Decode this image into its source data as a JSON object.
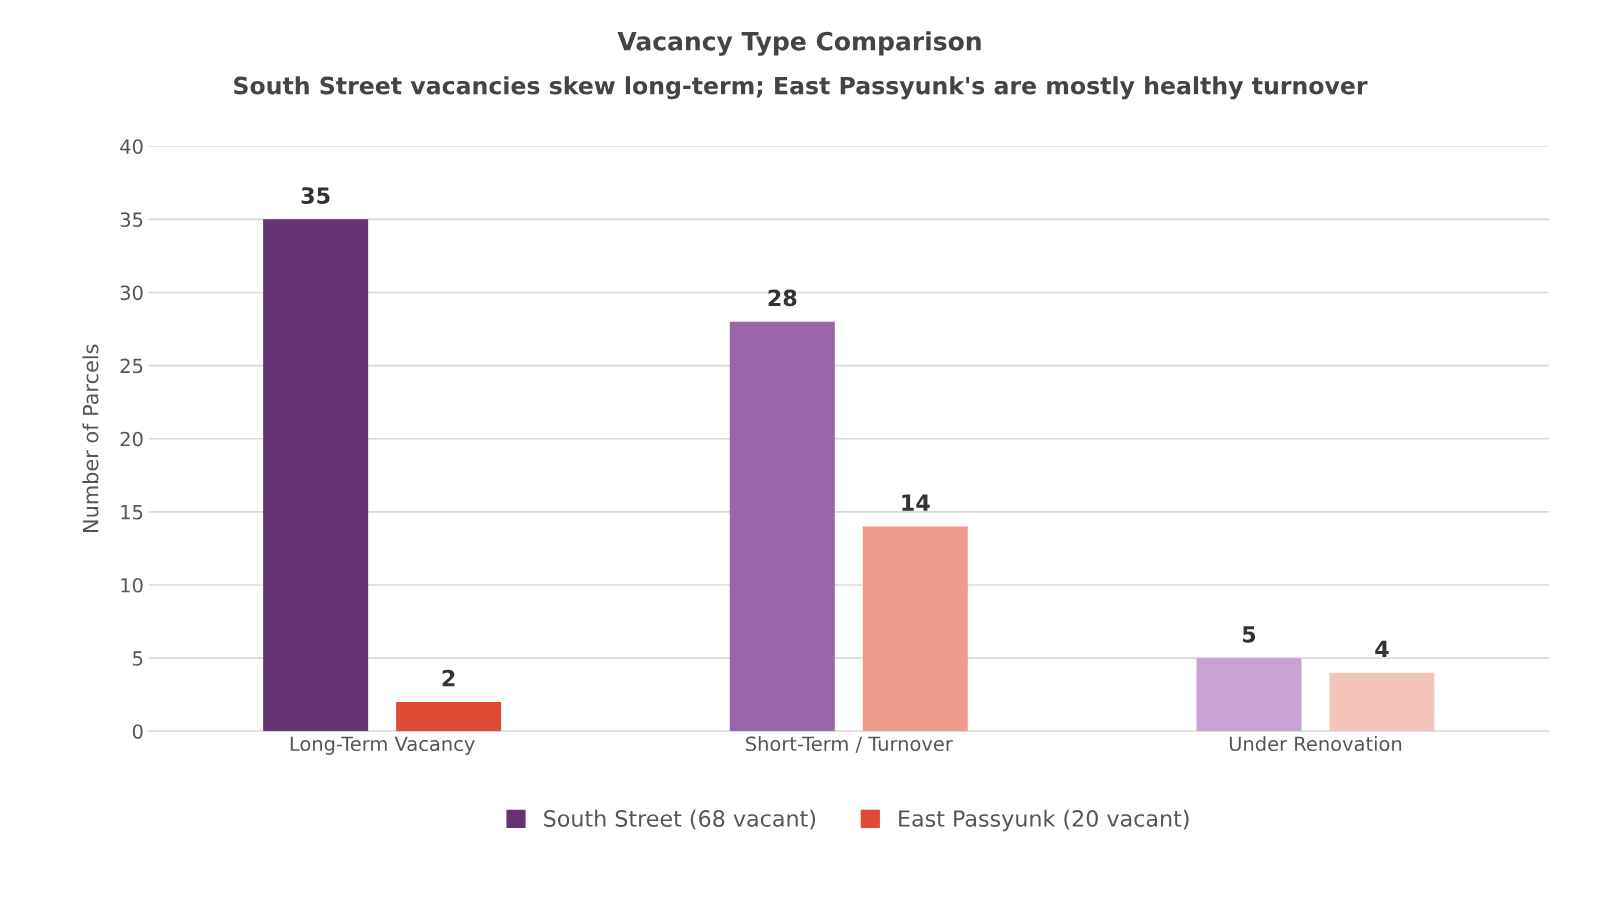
{
  "chart_data": {
    "type": "bar",
    "title": "Vacancy Type Comparison",
    "subtitle": "South Street vacancies skew long-term; East Passyunk's are mostly healthy turnover",
    "ylabel": "Number of Parcels",
    "categories": [
      "Long-Term Vacancy",
      "Short-Term / Turnover",
      "Under Renovation"
    ],
    "series": [
      {
        "name": "South Street (68 vacant)",
        "color": "#663372",
        "colors": [
          "#663372",
          "#9966aa",
          "#c8a2d4"
        ],
        "values": [
          35,
          28,
          5
        ]
      },
      {
        "name": "East Passyunk (20 vacant)",
        "color": "#e04a35",
        "colors": [
          "#e04a35",
          "#ee9a8c",
          "#f4c4ba"
        ],
        "values": [
          2,
          14,
          4
        ]
      }
    ],
    "ylim": [
      0,
      40
    ],
    "yticks": [
      0,
      5,
      10,
      15,
      20,
      25,
      30,
      35,
      40
    ],
    "grid": "y",
    "legend": "bottom",
    "data_labels": true
  }
}
